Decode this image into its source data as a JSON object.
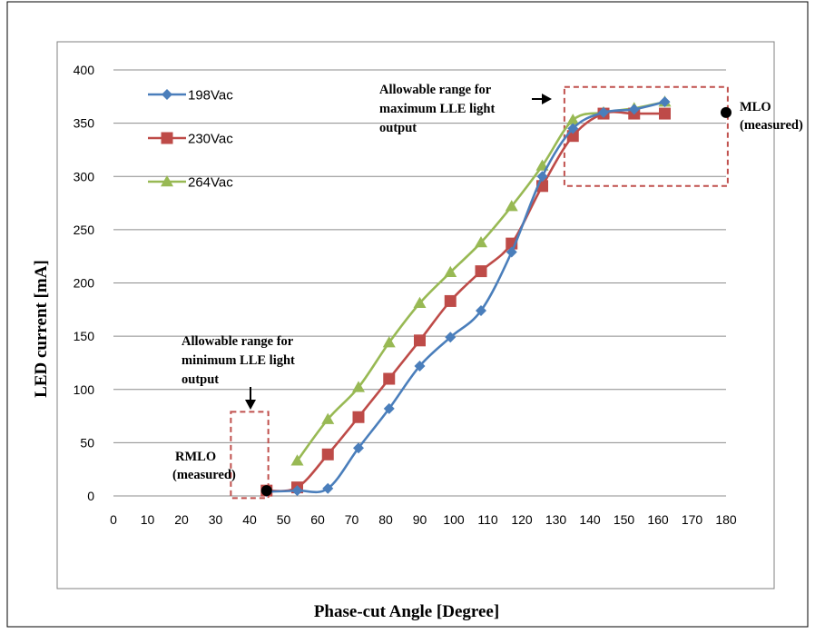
{
  "chart_data": {
    "type": "line",
    "title": "",
    "xlabel": "Phase-cut Angle [Degree]",
    "ylabel": "LED current [mA]",
    "xlim": [
      0,
      180
    ],
    "ylim": [
      0,
      400
    ],
    "xticks": [
      0,
      10,
      20,
      30,
      40,
      50,
      60,
      70,
      80,
      90,
      100,
      110,
      120,
      130,
      140,
      150,
      160,
      170,
      180
    ],
    "yticks": [
      0,
      50,
      100,
      150,
      200,
      250,
      300,
      350,
      400
    ],
    "grid": "horizontal",
    "legend_position": "top-left",
    "series": [
      {
        "name": "198Vac",
        "color": "#4A7EBB",
        "marker": "diamond",
        "x": [
          45,
          54,
          63,
          72,
          81,
          90,
          99,
          108,
          117,
          126,
          135,
          144,
          153,
          162
        ],
        "y": [
          4,
          5,
          7,
          45,
          82,
          122,
          149,
          174,
          229,
          300,
          345,
          360,
          363,
          370
        ]
      },
      {
        "name": "230Vac",
        "color": "#BE4B48",
        "marker": "square",
        "x": [
          45,
          54,
          63,
          72,
          81,
          90,
          99,
          108,
          117,
          126,
          135,
          144,
          153,
          162
        ],
        "y": [
          5,
          8,
          39,
          74,
          110,
          146,
          183,
          211,
          237,
          291,
          338,
          359,
          359,
          359
        ]
      },
      {
        "name": "264Vac",
        "color": "#98B954",
        "marker": "triangle",
        "x": [
          54,
          63,
          72,
          81,
          90,
          99,
          108,
          117,
          126,
          135,
          144,
          153,
          162
        ],
        "y": [
          33,
          72,
          102,
          144,
          181,
          210,
          238,
          272,
          310,
          353,
          360,
          364,
          370
        ]
      }
    ],
    "measured_points": [
      {
        "label": "RMLO (measured)",
        "x": 45,
        "y": 5
      },
      {
        "label": "MLO (measured)",
        "x": 180,
        "y": 360
      }
    ],
    "range_boxes": [
      {
        "label": "Allowable range for minimum LLE light output",
        "x": [
          34.5,
          45.5
        ],
        "y": [
          -2,
          79
        ]
      },
      {
        "label": "Allowable range for maximum LLE light output",
        "x": [
          132.5,
          180.5
        ],
        "y": [
          291,
          384
        ]
      }
    ]
  },
  "annotations": {
    "min_range": [
      "Allowable range for",
      "minimum LLE light",
      "output"
    ],
    "max_range": [
      "Allowable range for",
      "maximum LLE light",
      "output"
    ],
    "rmlo": [
      "RMLO",
      "(measured)"
    ],
    "mlo": [
      "MLO",
      "(measured)"
    ]
  }
}
